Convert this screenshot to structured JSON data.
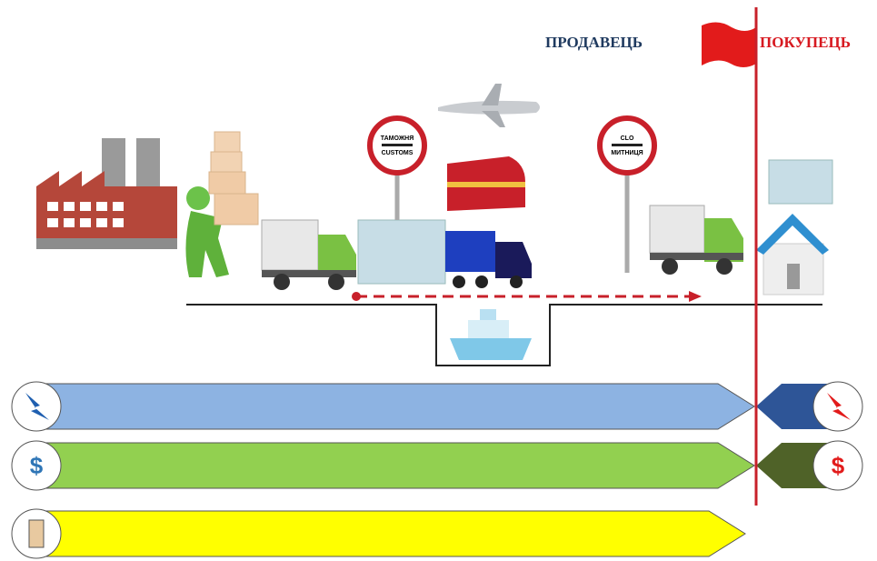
{
  "labels": {
    "seller": "ПРОДАВЕЦЬ",
    "buyer": "ПОКУПЕЦЬ"
  },
  "signs": [
    {
      "top": "ТАМОЖНЯ",
      "bottom": "CUSTOMS"
    },
    {
      "top": "CLO",
      "bottom": "МИТНИЦЯ"
    }
  ],
  "icons": {
    "cost_seller": "$",
    "cost_buyer": "$"
  }
}
